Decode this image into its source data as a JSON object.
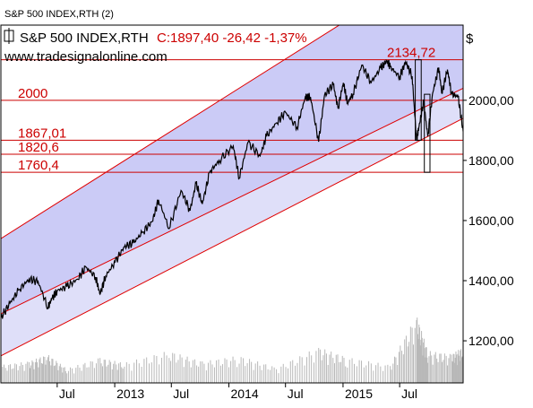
{
  "window_title": "S&P 500 INDEX,RTH (2)",
  "legend": {
    "symbol": "S&P 500 INDEX,RTH",
    "close_text": "C:1897,40 -26,42 -1,37%",
    "watermark": "www.tradesignalonline.com"
  },
  "colors": {
    "price": "#000000",
    "level_line": "#cc0000",
    "channel_fill": "#c8c8f5",
    "channel_line": "#e00000",
    "label_text": "#cc0000",
    "volume": "#b8b8b8",
    "axis_text": "#000000"
  },
  "chart_data": {
    "type": "line",
    "title": "S&P 500 INDEX,RTH",
    "currency_label": "$",
    "ylim": [
      1060,
      2250
    ],
    "y_ticks": [
      {
        "value": 1200,
        "label": "1200,00"
      },
      {
        "value": 1400,
        "label": "1400,00"
      },
      {
        "value": 1600,
        "label": "1600,00"
      },
      {
        "value": 1800,
        "label": "1800,00"
      },
      {
        "value": 2000,
        "label": "2000,00"
      }
    ],
    "x_range": [
      "2012-01-03",
      "2016-01-20"
    ],
    "x_ticks": [
      {
        "date": "2012-07-01",
        "label": "Jul"
      },
      {
        "date": "2013-01-01",
        "label": "2013"
      },
      {
        "date": "2013-07-01",
        "label": "Jul"
      },
      {
        "date": "2014-01-01",
        "label": "2014"
      },
      {
        "date": "2014-07-01",
        "label": "Jul"
      },
      {
        "date": "2015-01-01",
        "label": "2015"
      },
      {
        "date": "2015-07-01",
        "label": "Jul"
      }
    ],
    "levels": [
      {
        "value": 2134.72,
        "label": "2134,72"
      },
      {
        "value": 2000,
        "label": "2000"
      },
      {
        "value": 1867.01,
        "label": "1867,01"
      },
      {
        "value": 1820.6,
        "label": "1820,6"
      },
      {
        "value": 1760.4,
        "label": "1760,4"
      }
    ],
    "channel": {
      "upper": [
        [
          "2012-01-03",
          1540
        ],
        [
          "2016-01-20",
          2510
        ]
      ],
      "middle": [
        [
          "2012-01-03",
          1290
        ],
        [
          "2016-01-20",
          2040
        ]
      ],
      "lower": [
        [
          "2012-01-03",
          1150
        ],
        [
          "2016-01-20",
          1940
        ]
      ]
    },
    "rectangles": [
      {
        "from": "2015-08-20",
        "to": "2015-09-08",
        "top": 2134.72,
        "bottom": 1867.01
      },
      {
        "from": "2015-09-18",
        "to": "2015-10-06",
        "top": 2020,
        "bottom": 1760.4
      }
    ],
    "series": [
      {
        "x": [
          "2012-01-03",
          "2012-02-01",
          "2012-03-01",
          "2012-04-02",
          "2012-05-01",
          "2012-06-01",
          "2012-06-15",
          "2012-07-02",
          "2012-08-01",
          "2012-09-04",
          "2012-10-01",
          "2012-11-01",
          "2012-11-15",
          "2012-12-03",
          "2013-01-02",
          "2013-02-01",
          "2013-03-01",
          "2013-04-01",
          "2013-05-01",
          "2013-05-21",
          "2013-06-24",
          "2013-08-01",
          "2013-08-30",
          "2013-09-18",
          "2013-10-08",
          "2013-11-01",
          "2013-12-02",
          "2014-01-15",
          "2014-02-03",
          "2014-03-03",
          "2014-04-11",
          "2014-05-01",
          "2014-06-02",
          "2014-07-01",
          "2014-08-07",
          "2014-09-02",
          "2014-09-19",
          "2014-10-15",
          "2014-11-03",
          "2014-12-01",
          "2014-12-16",
          "2015-01-02",
          "2015-01-15",
          "2015-02-02",
          "2015-03-02",
          "2015-04-01",
          "2015-05-01",
          "2015-05-21",
          "2015-06-01",
          "2015-07-01",
          "2015-07-20",
          "2015-08-10",
          "2015-08-24",
          "2015-09-01",
          "2015-09-16",
          "2015-09-29",
          "2015-10-15",
          "2015-11-03",
          "2015-11-13",
          "2015-12-01",
          "2015-12-14",
          "2016-01-04",
          "2016-01-20"
        ],
        "values": [
          1277,
          1325,
          1370,
          1405,
          1397,
          1310,
          1342,
          1367,
          1380,
          1405,
          1445,
          1412,
          1355,
          1415,
          1462,
          1513,
          1525,
          1562,
          1597,
          1669,
          1573,
          1700,
          1633,
          1725,
          1655,
          1762,
          1800,
          1848,
          1741,
          1860,
          1815,
          1880,
          1925,
          1960,
          1910,
          2010,
          2011,
          1862,
          2017,
          2053,
          1972,
          2058,
          1992,
          2020,
          2117,
          2059,
          2107,
          2131,
          2112,
          2077,
          2128,
          2080,
          1867,
          1913,
          1995,
          1880,
          2025,
          2109,
          2023,
          2102,
          2021,
          2012,
          1897
        ]
      }
    ],
    "volume": [
      {
        "x": "2012-01-03",
        "v": 0.25
      },
      {
        "x": "2012-04-02",
        "v": 0.3
      },
      {
        "x": "2012-06-01",
        "v": 0.4
      },
      {
        "x": "2012-08-01",
        "v": 0.2
      },
      {
        "x": "2012-11-15",
        "v": 0.35
      },
      {
        "x": "2013-02-01",
        "v": 0.28
      },
      {
        "x": "2013-06-24",
        "v": 0.45
      },
      {
        "x": "2013-10-08",
        "v": 0.3
      },
      {
        "x": "2014-02-03",
        "v": 0.38
      },
      {
        "x": "2014-06-02",
        "v": 0.22
      },
      {
        "x": "2014-10-15",
        "v": 0.5
      },
      {
        "x": "2015-01-15",
        "v": 0.36
      },
      {
        "x": "2015-06-01",
        "v": 0.25
      },
      {
        "x": "2015-08-24",
        "v": 0.95
      },
      {
        "x": "2015-09-29",
        "v": 0.45
      },
      {
        "x": "2015-12-14",
        "v": 0.4
      },
      {
        "x": "2016-01-20",
        "v": 0.5
      }
    ]
  }
}
